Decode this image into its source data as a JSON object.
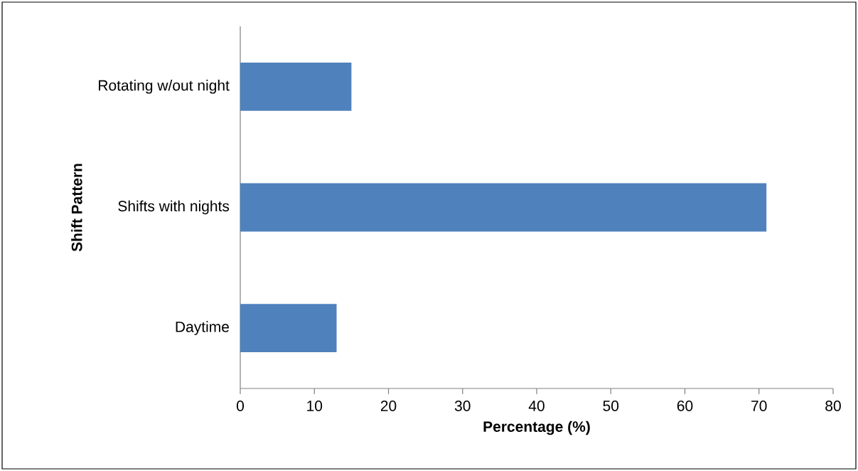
{
  "chart_data": {
    "type": "bar",
    "orientation": "horizontal",
    "categories": [
      "Rotating w/out night",
      "Shifts with nights",
      "Daytime"
    ],
    "values": [
      15,
      71,
      13
    ],
    "color": "#4f81bd",
    "xlim": [
      0,
      80
    ],
    "xticks": [
      0,
      10,
      20,
      30,
      40,
      50,
      60,
      70,
      80
    ],
    "xlabel": "Percentage (%)",
    "ylabel": "Shift Pattern"
  }
}
